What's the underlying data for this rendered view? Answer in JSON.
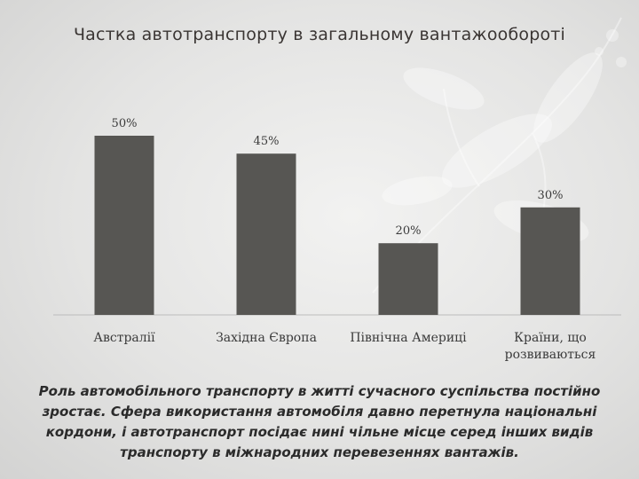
{
  "title": "Частка автотранспорту в загальному вантажообороті",
  "chart_data": {
    "type": "bar",
    "categories": [
      "Австралії",
      "Західна Європа",
      "Північна Америці",
      "Країни, що розвиваються"
    ],
    "values": [
      50,
      45,
      20,
      30
    ],
    "data_labels": [
      "50%",
      "45%",
      "20%",
      "30%"
    ],
    "ylim": [
      0,
      50
    ],
    "grid": false,
    "bar_color": "#575653"
  },
  "body_text": "Роль автомобільного транспорту в житті сучасного суспільства постійно зростає. Сфера використання автомобіля давно перетнула національні кордони, і автотранспорт посідає нині чільне місце серед інших видів транспорту в міжнародних перевезеннях вантажів."
}
